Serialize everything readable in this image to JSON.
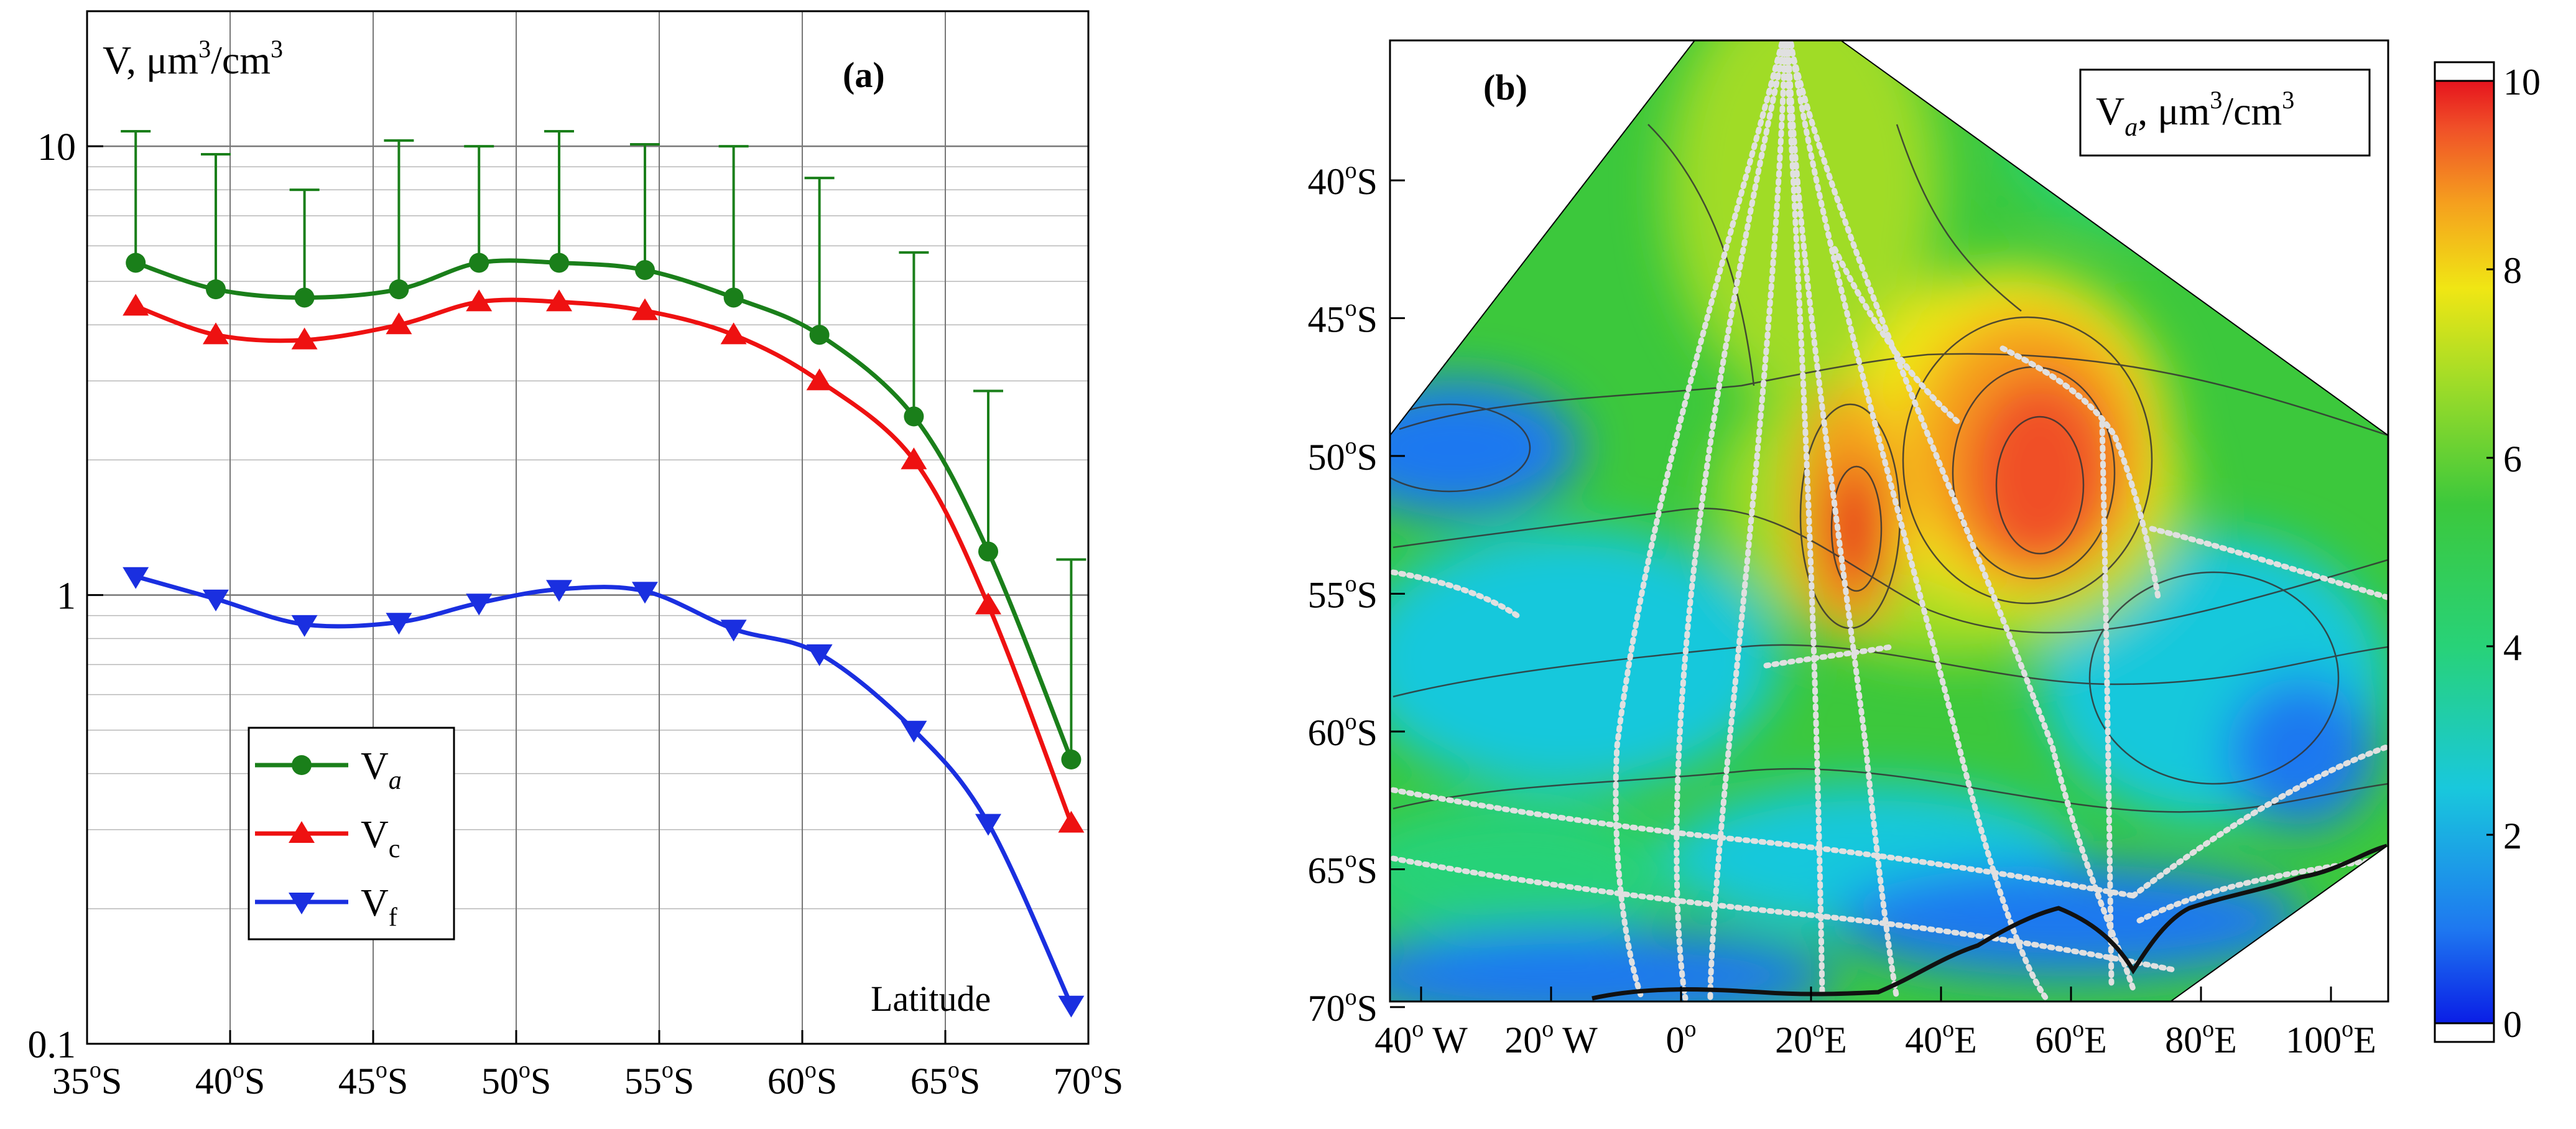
{
  "chart_data": [
    {
      "type": "line",
      "panel_label": "(a)",
      "ylabel_prefix": "V, μm",
      "ylabel_exp1": "3",
      "ylabel_mid": "/cm",
      "ylabel_exp2": "3",
      "xlabel": "Latitude",
      "yscale": "log",
      "ylim": [
        0.1,
        20
      ],
      "xlim": [
        35,
        70
      ],
      "grid": true,
      "legend_position": "lower-left",
      "x_ticks": [
        35,
        40,
        45,
        50,
        55,
        60,
        65,
        70
      ],
      "x_tick_labels": [
        "35°S",
        "40°S",
        "45°S",
        "50°S",
        "55°S",
        "60°S",
        "65°S",
        "70°S"
      ],
      "x_tick_deg_split": [
        {
          "num": "35",
          "hem": "S"
        },
        {
          "num": "40",
          "hem": "S"
        },
        {
          "num": "45",
          "hem": "S"
        },
        {
          "num": "50",
          "hem": "S"
        },
        {
          "num": "55",
          "hem": "S"
        },
        {
          "num": "60",
          "hem": "S"
        },
        {
          "num": "65",
          "hem": "S"
        },
        {
          "num": "70",
          "hem": "S"
        }
      ],
      "y_ticks": [
        0.1,
        1,
        10
      ],
      "y_tick_labels": [
        "0.1",
        "1",
        "10"
      ],
      "x": [
        36.7,
        39.5,
        42.6,
        45.9,
        48.7,
        51.5,
        54.5,
        57.6,
        60.6,
        63.9,
        66.5,
        69.4
      ],
      "series": [
        {
          "name": "V",
          "sub": "a",
          "sub_italic": true,
          "color": "#1a7f1a",
          "marker": "circle",
          "values": [
            5.5,
            4.8,
            4.6,
            4.8,
            5.5,
            5.5,
            5.3,
            4.6,
            3.8,
            2.5,
            1.25,
            0.43
          ],
          "error_upper": [
            10.8,
            9.6,
            8.0,
            10.3,
            10.0,
            10.8,
            10.1,
            10.0,
            8.5,
            5.8,
            2.85,
            1.2
          ]
        },
        {
          "name": "V",
          "sub": "c",
          "sub_italic": false,
          "color": "#ee1111",
          "marker": "triangle-up",
          "values": [
            4.4,
            3.8,
            3.7,
            4.0,
            4.5,
            4.5,
            4.3,
            3.8,
            3.0,
            2.0,
            0.95,
            0.31
          ]
        },
        {
          "name": "V",
          "sub": "f",
          "sub_italic": false,
          "color": "#1a2fe0",
          "marker": "triangle-down",
          "values": [
            1.1,
            0.98,
            0.86,
            0.87,
            0.96,
            1.03,
            1.02,
            0.84,
            0.74,
            0.5,
            0.31,
            0.122
          ]
        }
      ]
    },
    {
      "type": "heatmap",
      "panel_label": "(b)",
      "colorbar_title_prefix": "V",
      "colorbar_title_sub": "a",
      "colorbar_title_mid": ", μm",
      "colorbar_title_exp1": "3",
      "colorbar_title_unit": "/cm",
      "colorbar_title_exp2": "3",
      "colorbar_range": [
        0,
        10
      ],
      "colorbar_ticks": [
        0,
        2,
        4,
        6,
        8,
        10
      ],
      "colorbar_tick_labels": [
        "0",
        "2",
        "4",
        "6",
        "8",
        "10"
      ],
      "colormap": [
        "#0a1ee6",
        "#1e78f0",
        "#19c8dc",
        "#28d278",
        "#3cc83c",
        "#a0dc28",
        "#f0e614",
        "#f5a01e",
        "#f05028",
        "#e6141e"
      ],
      "lat_ticks": [
        40,
        45,
        50,
        55,
        60,
        65,
        70
      ],
      "lat_tick_labels": [
        "40°S",
        "45°S",
        "50°S",
        "55°S",
        "60°S",
        "65°S",
        "70°S"
      ],
      "lat_tick_split": [
        {
          "num": "40",
          "hem": "S"
        },
        {
          "num": "45",
          "hem": "S"
        },
        {
          "num": "50",
          "hem": "S"
        },
        {
          "num": "55",
          "hem": "S"
        },
        {
          "num": "60",
          "hem": "S"
        },
        {
          "num": "65",
          "hem": "S"
        },
        {
          "num": "70",
          "hem": "S"
        }
      ],
      "lon_ticks": [
        -40,
        -20,
        0,
        20,
        40,
        60,
        80,
        100
      ],
      "lon_tick_labels": [
        "40° W",
        "20° W",
        "0°",
        "20°E",
        "40°E",
        "60°E",
        "80°E",
        "100°E"
      ],
      "lon_tick_split": [
        {
          "num": "40",
          "hem": " W"
        },
        {
          "num": "20",
          "hem": " W"
        },
        {
          "num": "0",
          "hem": ""
        },
        {
          "num": "20",
          "hem": "E"
        },
        {
          "num": "40",
          "hem": "E"
        },
        {
          "num": "60",
          "hem": "E"
        },
        {
          "num": "80",
          "hem": "E"
        },
        {
          "num": "100",
          "hem": "E"
        }
      ]
    }
  ]
}
